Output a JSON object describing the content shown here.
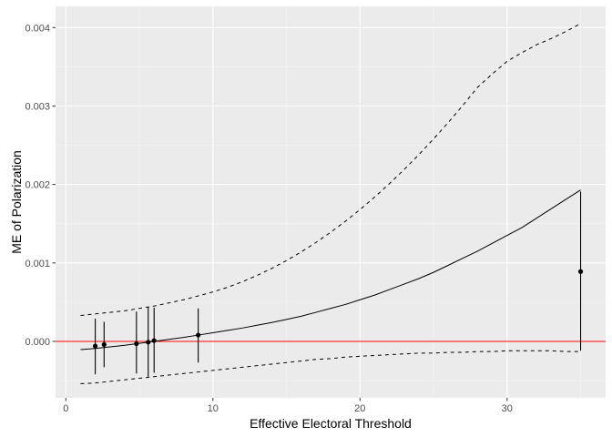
{
  "chart_data": {
    "type": "line",
    "title": "",
    "xlabel": "Effective Electoral Threshold",
    "ylabel": "ME of Polarization",
    "xlim": [
      -0.7,
      36.7
    ],
    "ylim": [
      -0.00072,
      0.00427
    ],
    "x_ticks": [
      0,
      10,
      20,
      30
    ],
    "x_tick_labels": [
      "0",
      "10",
      "20",
      "30"
    ],
    "y_ticks": [
      0,
      0.001,
      0.002,
      0.003,
      0.004
    ],
    "y_tick_labels": [
      "0.000",
      "0.001",
      "0.002",
      "0.003",
      "0.004"
    ],
    "grid": true,
    "legend": "none",
    "reference_line": {
      "y": 0,
      "color": "#ff0000"
    },
    "series": [
      {
        "role": "estimate",
        "style": "solid",
        "x": [
          1,
          2,
          3,
          4,
          5,
          6,
          7,
          8,
          9,
          10,
          11,
          12,
          13,
          14,
          15,
          16,
          17,
          18,
          19,
          20,
          21,
          22,
          23,
          24,
          25,
          26,
          27,
          28,
          29,
          30,
          31,
          32,
          33,
          34,
          35
        ],
        "y": [
          -0.000105,
          -9e-05,
          -7e-05,
          -5e-05,
          -2.5e-05,
          0.0,
          2.5e-05,
          5e-05,
          8e-05,
          0.00011,
          0.00014,
          0.00017,
          0.000205,
          0.00024,
          0.00028,
          0.00032,
          0.00037,
          0.00042,
          0.00047,
          0.00053,
          0.00059,
          0.00066,
          0.00073,
          0.0008,
          0.00088,
          0.00097,
          0.00106,
          0.00115,
          0.00125,
          0.00135,
          0.00145,
          0.00157,
          0.00169,
          0.00181,
          0.00193
        ]
      },
      {
        "role": "upper-bound",
        "style": "dashed",
        "x": [
          1,
          2,
          3,
          4,
          5,
          6,
          7,
          8,
          9,
          10,
          11,
          12,
          13,
          14,
          15,
          16,
          17,
          18,
          19,
          20,
          21,
          22,
          23,
          24,
          25,
          26,
          27,
          28,
          29,
          30,
          31,
          32,
          33,
          34,
          35
        ],
        "y": [
          0.00033,
          0.00035,
          0.00037,
          0.00039,
          0.00042,
          0.00045,
          0.00049,
          0.00053,
          0.00058,
          0.00063,
          0.00069,
          0.00076,
          0.00084,
          0.00093,
          0.00103,
          0.00114,
          0.00126,
          0.00139,
          0.00153,
          0.00168,
          0.00184,
          0.00201,
          0.00219,
          0.00238,
          0.00258,
          0.00279,
          0.00301,
          0.00324,
          0.00341,
          0.00357,
          0.00368,
          0.00378,
          0.00386,
          0.00395,
          0.00405
        ]
      },
      {
        "role": "lower-bound",
        "style": "dashed",
        "x": [
          1,
          2,
          3,
          4,
          5,
          6,
          7,
          8,
          9,
          10,
          11,
          12,
          13,
          14,
          15,
          16,
          17,
          18,
          19,
          20,
          21,
          22,
          23,
          24,
          25,
          26,
          27,
          28,
          29,
          30,
          31,
          32,
          33,
          34,
          35
        ],
        "y": [
          -0.00054,
          -0.00053,
          -0.00051,
          -0.00049,
          -0.00047,
          -0.00045,
          -0.00043,
          -0.00041,
          -0.00039,
          -0.00037,
          -0.00035,
          -0.00033,
          -0.00031,
          -0.00029,
          -0.00027,
          -0.00025,
          -0.00023,
          -0.00022,
          -0.0002,
          -0.00019,
          -0.00018,
          -0.00017,
          -0.00016,
          -0.00015,
          -0.00015,
          -0.00014,
          -0.00014,
          -0.00013,
          -0.00013,
          -0.00012,
          -0.00012,
          -0.00012,
          -0.00012,
          -0.00013,
          -0.00013
        ]
      }
    ],
    "points": [
      {
        "x": 2.0,
        "y": -6e-05,
        "lower": -0.00042,
        "upper": 0.00029
      },
      {
        "x": 2.6,
        "y": -4e-05,
        "lower": -0.00033,
        "upper": 0.00025
      },
      {
        "x": 4.8,
        "y": -3e-05,
        "lower": -0.00041,
        "upper": 0.00038
      },
      {
        "x": 5.6,
        "y": -1e-05,
        "lower": -0.00045,
        "upper": 0.00044
      },
      {
        "x": 6.0,
        "y": 1e-05,
        "lower": -0.0004,
        "upper": 0.00043
      },
      {
        "x": 9.0,
        "y": 8e-05,
        "lower": -0.00027,
        "upper": 0.00042
      },
      {
        "x": 35.0,
        "y": 0.00089,
        "lower": -0.00012,
        "upper": 0.00191
      }
    ],
    "colors": {
      "panel": "#ebebeb",
      "grid_major": "#ffffff",
      "grid_minor": "#f5f5f5",
      "line": "#000000",
      "reference": "#ff0000",
      "tick_text": "#4d4d4d",
      "tick_mark": "#333333"
    }
  }
}
